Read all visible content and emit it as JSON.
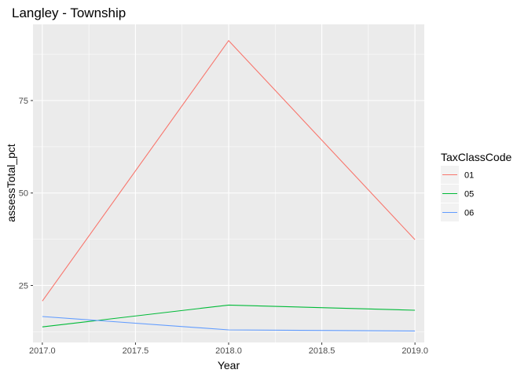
{
  "chart_data": {
    "type": "line",
    "title": "Langley - Township",
    "xlabel": "Year",
    "ylabel": "assessTotal_pct",
    "x": [
      2017,
      2018,
      2019
    ],
    "xticks": [
      "2017.0",
      "2017.5",
      "2018.0",
      "2018.5",
      "2019.0"
    ],
    "xtick_values": [
      2017.0,
      2017.5,
      2018.0,
      2018.5,
      2019.0
    ],
    "yticks": [
      "25",
      "50",
      "75"
    ],
    "ytick_values": [
      25,
      50,
      75
    ],
    "xlim": [
      2016.95,
      2019.05
    ],
    "ylim": [
      9.6,
      95.6
    ],
    "grid": true,
    "legend": {
      "title": "TaxClassCode",
      "position": "right"
    },
    "series": [
      {
        "name": "01",
        "color": "#F8766D",
        "values": [
          20.8,
          91.2,
          37.4
        ]
      },
      {
        "name": "05",
        "color": "#00BA38",
        "values": [
          13.8,
          19.7,
          18.3
        ]
      },
      {
        "name": "06",
        "color": "#619CFF",
        "values": [
          16.6,
          13.0,
          12.7
        ]
      }
    ]
  }
}
